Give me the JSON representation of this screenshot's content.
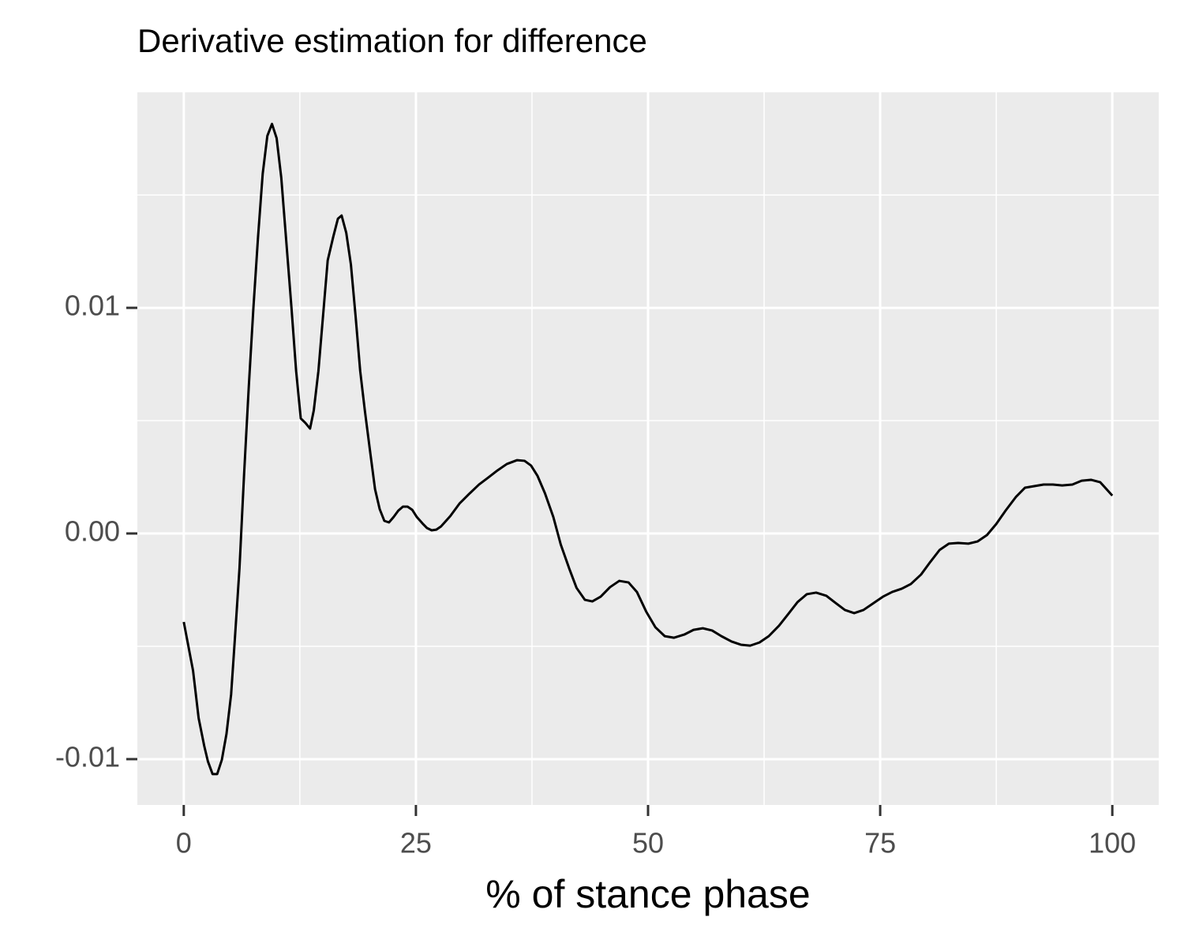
{
  "chart_data": {
    "type": "line",
    "title": "Derivative estimation for difference",
    "x_label": "% of stance phase",
    "x": [
      0,
      1.0,
      1.6,
      2.2,
      2.6,
      3.1,
      3.6,
      4.1,
      4.6,
      5.1,
      5.5,
      6.0,
      6.5,
      7.0,
      7.5,
      8.0,
      8.5,
      9.0,
      9.5,
      10.0,
      10.5,
      11.0,
      11.6,
      12.1,
      12.6,
      13.1,
      13.6,
      14.0,
      14.5,
      15.0,
      15.5,
      16.1,
      16.6,
      17.0,
      17.5,
      18.0,
      18.5,
      19.0,
      19.5,
      20.1,
      20.6,
      21.1,
      21.6,
      22.1,
      22.6,
      23.1,
      23.6,
      24.1,
      24.6,
      25.1,
      25.7,
      26.2,
      26.7,
      27.2,
      27.7,
      28.7,
      29.7,
      30.8,
      31.8,
      32.8,
      33.8,
      34.8,
      35.9,
      36.7,
      37.4,
      38.1,
      38.9,
      39.8,
      40.6,
      41.5,
      42.3,
      43.2,
      44.0,
      44.9,
      45.9,
      46.9,
      47.9,
      48.8,
      49.8,
      50.8,
      51.8,
      52.8,
      53.9,
      54.9,
      55.9,
      56.9,
      57.9,
      59.0,
      60.0,
      61.0,
      62.0,
      63.0,
      64.1,
      65.1,
      66.1,
      67.1,
      68.1,
      69.2,
      70.2,
      71.2,
      72.2,
      73.2,
      74.3,
      75.3,
      76.3,
      77.3,
      78.3,
      79.4,
      80.4,
      81.4,
      82.4,
      83.4,
      84.5,
      85.5,
      86.5,
      87.5,
      88.5,
      89.6,
      90.6,
      91.6,
      92.6,
      93.6,
      94.6,
      95.7,
      96.7,
      97.7,
      98.7,
      100
    ],
    "values": [
      -0.00392,
      -0.00608,
      -0.00818,
      -0.00941,
      -0.0101,
      -0.01066,
      -0.01066,
      -0.01003,
      -0.00888,
      -0.00713,
      -0.00469,
      -0.00154,
      0.00266,
      0.0065,
      0.01,
      0.01315,
      0.01594,
      0.01762,
      0.01815,
      0.01752,
      0.01577,
      0.01315,
      0.01,
      0.0072,
      0.0051,
      0.0049,
      0.00465,
      0.00545,
      0.0072,
      0.00965,
      0.0121,
      0.01315,
      0.01395,
      0.01409,
      0.01332,
      0.01192,
      0.00965,
      0.0072,
      0.00545,
      0.00353,
      0.00196,
      0.00108,
      0.00056,
      0.00049,
      0.00073,
      0.00101,
      0.00119,
      0.00119,
      0.00105,
      0.00073,
      0.00045,
      0.00024,
      0.00014,
      0.00017,
      0.00031,
      0.00077,
      0.00133,
      0.00178,
      0.00217,
      0.00248,
      0.0028,
      0.00308,
      0.00325,
      0.00322,
      0.00301,
      0.00255,
      0.00178,
      0.00073,
      -0.00049,
      -0.00154,
      -0.00241,
      -0.00294,
      -0.00301,
      -0.0028,
      -0.00238,
      -0.0021,
      -0.00217,
      -0.00259,
      -0.00346,
      -0.00416,
      -0.00455,
      -0.00462,
      -0.00448,
      -0.00427,
      -0.0042,
      -0.0043,
      -0.00455,
      -0.00479,
      -0.00493,
      -0.00497,
      -0.00483,
      -0.00455,
      -0.00409,
      -0.00357,
      -0.00304,
      -0.00269,
      -0.00262,
      -0.00276,
      -0.00308,
      -0.00339,
      -0.00353,
      -0.00339,
      -0.00308,
      -0.0028,
      -0.00259,
      -0.00245,
      -0.00224,
      -0.00182,
      -0.00126,
      -0.00073,
      -0.00045,
      -0.00042,
      -0.00045,
      -0.00035,
      -7e-05,
      0.00042,
      0.00101,
      0.00161,
      0.00203,
      0.0021,
      0.00217,
      0.00217,
      0.00213,
      0.00217,
      0.00234,
      0.00238,
      0.00227,
      0.00168
    ],
    "color": "#000000",
    "xlim": [
      -5,
      105
    ],
    "xticks": [
      0,
      25,
      50,
      75,
      100
    ],
    "xminor": [
      12.5,
      37.5,
      62.5,
      87.5
    ],
    "ylim": [
      -0.01203,
      0.01955
    ],
    "yticks": [
      -0.01,
      {
        "value": 0,
        "label": "0.00"
      },
      0.01
    ],
    "yminor": [
      -0.005,
      0.005,
      0.015
    ],
    "grid": true
  }
}
